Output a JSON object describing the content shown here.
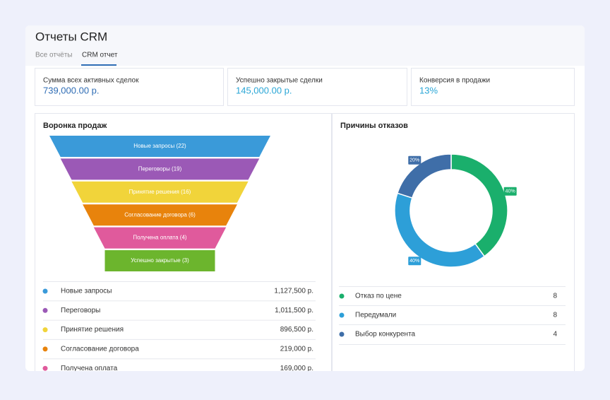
{
  "header": {
    "title": "Отчеты CRM",
    "tabs": [
      "Все отчёты",
      "CRM отчет"
    ]
  },
  "stats": [
    {
      "label": "Сумма всех активных сделок",
      "value": "739,000.00 р."
    },
    {
      "label": "Успешно закрытые сделки",
      "value": "145,000.00 р."
    },
    {
      "label": "Конверсия в продажи",
      "value": "13%"
    }
  ],
  "funnel": {
    "title": "Воронка продаж",
    "stages": [
      {
        "label": "Новые запросы (22)",
        "color": "#3a9ad9"
      },
      {
        "label": "Переговоры (19)",
        "color": "#9b59b6"
      },
      {
        "label": "Принятие решения (16)",
        "color": "#f1d43a"
      },
      {
        "label": "Согласование договора (6)",
        "color": "#e8830c"
      },
      {
        "label": "Получена оплата (4)",
        "color": "#e05a9c"
      },
      {
        "label": "Успешно закрытые (3)",
        "color": "#6cb52d"
      }
    ],
    "rows": [
      {
        "name": "Новые запросы",
        "amount": "1,127,500 р."
      },
      {
        "name": "Переговоры",
        "amount": "1,011,500 р."
      },
      {
        "name": "Принятие решения",
        "amount": "896,500 р."
      },
      {
        "name": "Согласование договора",
        "amount": "219,000 р."
      },
      {
        "name": "Получена оплата",
        "amount": "169,000 р."
      }
    ]
  },
  "reasons": {
    "title": "Причины отказов",
    "type": "pie",
    "values": [
      40,
      40,
      20
    ],
    "value_labels": [
      "40%",
      "40%",
      "20%"
    ],
    "colors": [
      "#1aaf6c",
      "#2d9fd8",
      "#3f6ea8"
    ],
    "legend": [
      {
        "name": "Отказ по цене",
        "count": 8
      },
      {
        "name": "Передумали",
        "count": 8
      },
      {
        "name": "Выбор конкурента",
        "count": 4
      }
    ]
  }
}
